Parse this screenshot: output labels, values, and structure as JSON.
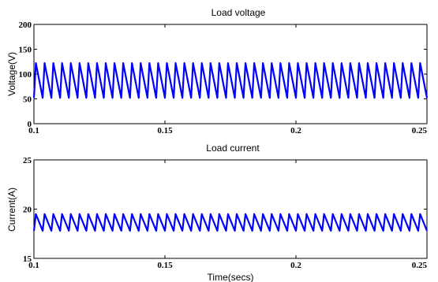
{
  "chart_data": [
    {
      "type": "line",
      "title": "Load voltage",
      "xlabel": "",
      "ylabel": "Voltage(V)",
      "xlim": [
        0.1,
        0.25
      ],
      "ylim": [
        0,
        200
      ],
      "xticks": [
        "0.1",
        "0.15",
        "0.2",
        "0.25"
      ],
      "yticks": [
        "0",
        "50",
        "100",
        "150",
        "200"
      ],
      "grid": false,
      "series": [
        {
          "color": "#0000ff",
          "waveform": "periodic",
          "cycles_in_view": 45,
          "min": 52,
          "max": 122
        }
      ]
    },
    {
      "type": "line",
      "title": "Load current",
      "xlabel": "Time(secs)",
      "ylabel": "Current(A)",
      "xlim": [
        0.1,
        0.25
      ],
      "ylim": [
        15,
        25
      ],
      "xticks": [
        "0.1",
        "0.15",
        "0.2",
        "0.25"
      ],
      "yticks": [
        "15",
        "20",
        "25"
      ],
      "grid": false,
      "series": [
        {
          "color": "#0000ff",
          "waveform": "periodic",
          "cycles_in_view": 45,
          "min": 17.8,
          "max": 19.5
        }
      ]
    }
  ]
}
